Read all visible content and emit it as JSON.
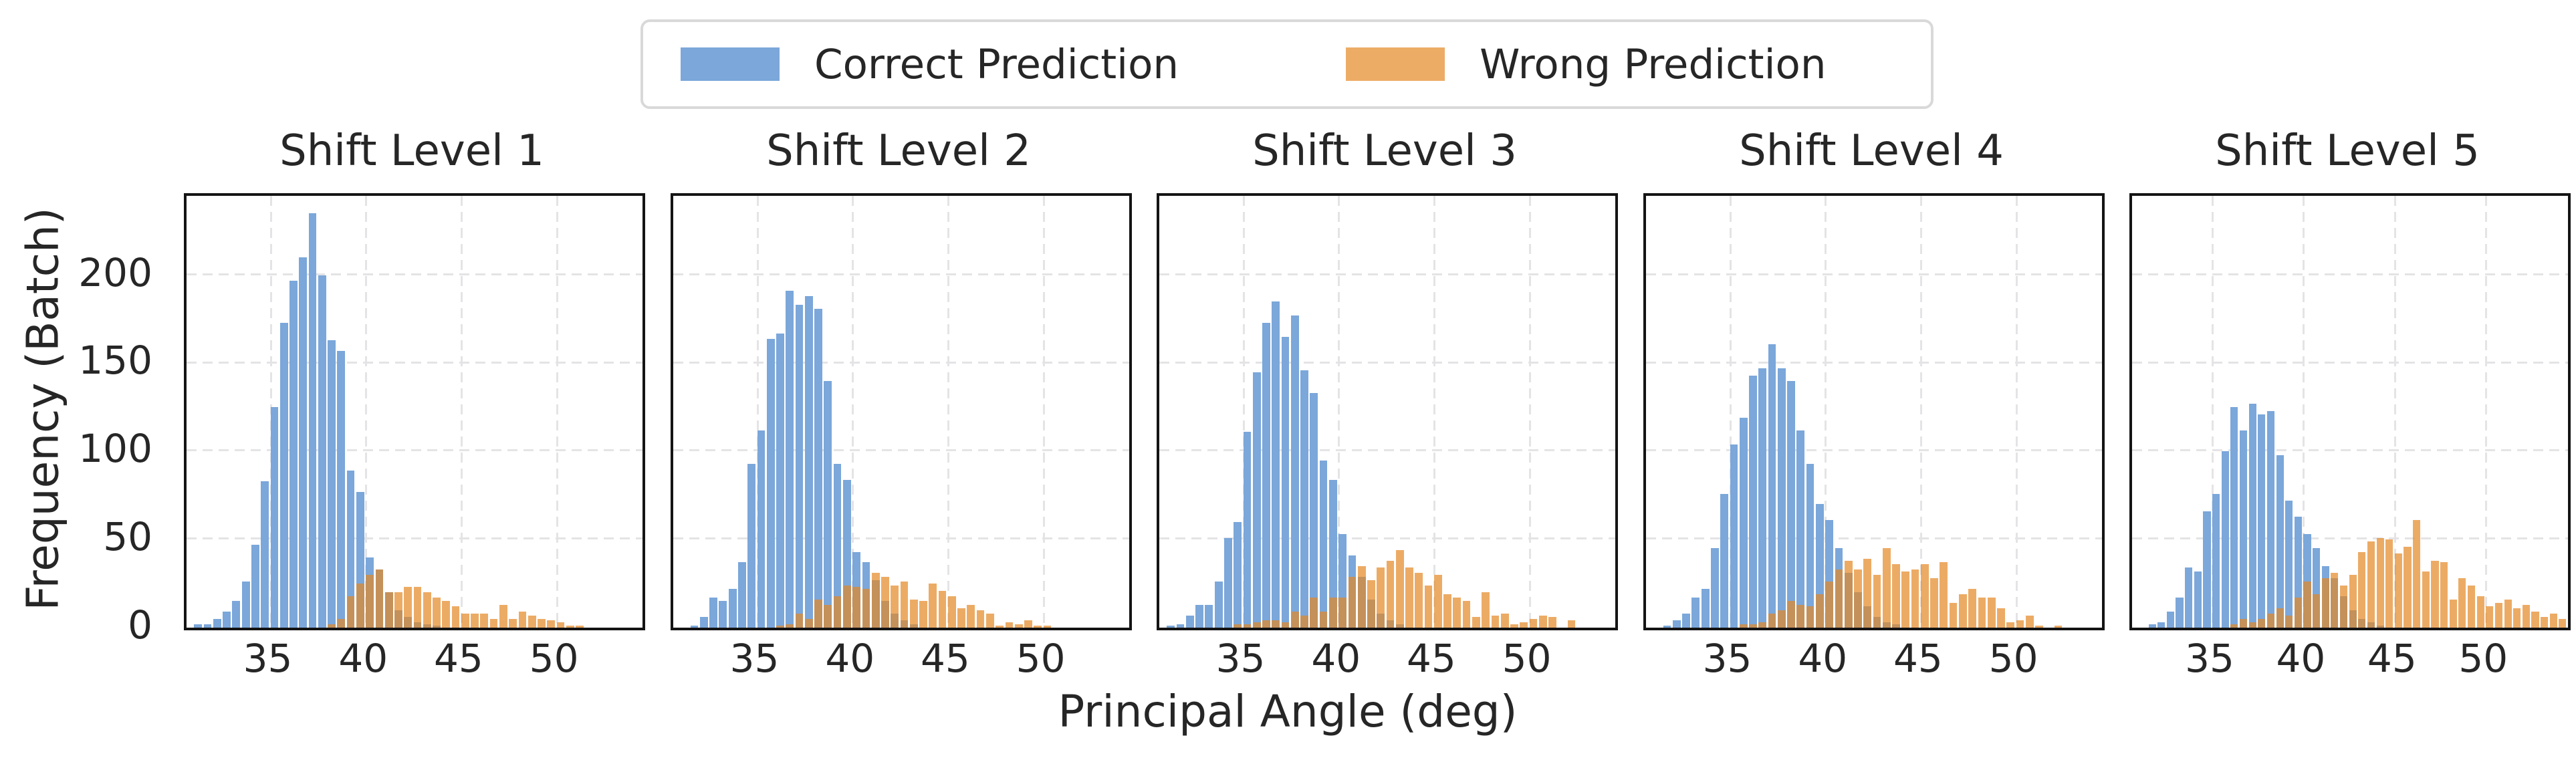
{
  "legend": {
    "items": [
      {
        "label": "Correct Prediction",
        "color": "#7BA7DA"
      },
      {
        "label": "Wrong Prediction",
        "color": "#ECAC66"
      }
    ]
  },
  "axes": {
    "xlabel": "Principal Angle (deg)",
    "ylabel": "Frequency (Batch)",
    "xtick_labels": [
      "35",
      "40",
      "45",
      "50"
    ],
    "ytick_labels": [
      "0",
      "50",
      "100",
      "150",
      "200"
    ]
  },
  "colors": {
    "correct_fill": "#7BA7DA",
    "wrong_fill": "#ECAC66",
    "overlap_fill": "#C5925B",
    "grid": "#e4e4e6",
    "spine": "#141414",
    "text": "#262626"
  },
  "chart_data": {
    "type": "bar",
    "subtype": "overlaid-histograms",
    "bin_width_deg": 0.5,
    "xlabel": "Principal Angle (deg)",
    "ylabel": "Frequency (Batch)",
    "xlim": [
      30.6,
      54.5
    ],
    "ylim": [
      0,
      245
    ],
    "xticks": [
      35,
      40,
      45,
      50
    ],
    "yticks": [
      0,
      50,
      100,
      150,
      200
    ],
    "grid": "dashed",
    "legend_position": "top-center",
    "legend": [
      "Correct Prediction",
      "Wrong Prediction"
    ],
    "subplots": [
      {
        "title": "Shift Level 1",
        "correct": {
          "start_deg": 31.0,
          "counts": [
            2,
            2,
            5,
            9,
            15,
            26,
            47,
            83,
            125,
            173,
            197,
            210,
            235,
            200,
            163,
            157,
            89,
            77,
            40,
            33,
            20,
            10,
            6,
            3,
            2,
            1
          ]
        },
        "wrong": {
          "start_deg": 38.0,
          "counts": [
            2,
            5,
            18,
            25,
            30,
            33,
            20,
            20,
            23,
            23,
            20,
            17,
            15,
            12,
            8,
            8,
            8,
            5,
            13,
            5,
            9,
            7,
            5,
            4,
            3,
            1,
            1
          ]
        }
      },
      {
        "title": "Shift Level 2",
        "correct": {
          "start_deg": 31.5,
          "counts": [
            1,
            6,
            17,
            15,
            22,
            37,
            93,
            112,
            164,
            167,
            191,
            183,
            188,
            181,
            140,
            93,
            84,
            43,
            37,
            27,
            15,
            8,
            4,
            2
          ]
        },
        "wrong": {
          "start_deg": 36.0,
          "counts": [
            1,
            2,
            8,
            5,
            16,
            13,
            18,
            24,
            23,
            22,
            31,
            29,
            24,
            26,
            16,
            15,
            25,
            21,
            18,
            11,
            13,
            10,
            8,
            1,
            3,
            2,
            4,
            1,
            1
          ]
        }
      },
      {
        "title": "Shift Level 3",
        "correct": {
          "start_deg": 31.0,
          "counts": [
            1,
            2,
            7,
            13,
            13,
            26,
            51,
            60,
            111,
            145,
            173,
            185,
            165,
            177,
            146,
            133,
            95,
            84,
            53,
            41,
            29,
            16,
            8,
            4,
            2
          ]
        },
        "wrong": {
          "start_deg": 34.5,
          "counts": [
            2,
            2,
            3,
            4,
            4,
            3,
            9,
            7,
            17,
            9,
            17,
            17,
            29,
            35,
            27,
            34,
            38,
            44,
            34,
            31,
            24,
            30,
            19,
            17,
            15,
            6,
            20,
            7,
            8,
            2,
            3,
            5,
            7,
            6,
            0,
            4
          ]
        }
      },
      {
        "title": "Shift Level 4",
        "correct": {
          "start_deg": 31.5,
          "counts": [
            1,
            4,
            8,
            17,
            22,
            45,
            76,
            104,
            119,
            143,
            147,
            161,
            147,
            140,
            112,
            93,
            70,
            61,
            45,
            31,
            20,
            12,
            6,
            3,
            2
          ]
        },
        "wrong": {
          "start_deg": 35.5,
          "counts": [
            2,
            2,
            3,
            8,
            10,
            15,
            13,
            12,
            19,
            26,
            33,
            38,
            33,
            39,
            30,
            45,
            36,
            32,
            33,
            36,
            28,
            37,
            14,
            19,
            22,
            17,
            17,
            11,
            3,
            4,
            7,
            1,
            0,
            1
          ]
        }
      },
      {
        "title": "Shift Level 5",
        "correct": {
          "start_deg": 31.5,
          "counts": [
            2,
            3,
            9,
            17,
            34,
            32,
            66,
            76,
            100,
            125,
            112,
            127,
            121,
            123,
            98,
            72,
            63,
            53,
            45,
            35,
            28,
            18,
            10,
            5,
            3,
            1
          ]
        },
        "wrong": {
          "start_deg": 36.0,
          "counts": [
            2,
            5,
            3,
            5,
            8,
            11,
            7,
            17,
            26,
            19,
            28,
            31,
            24,
            30,
            43,
            49,
            51,
            50,
            42,
            46,
            61,
            32,
            38,
            37,
            16,
            28,
            24,
            18,
            12,
            14,
            16,
            11,
            13,
            9,
            6,
            8,
            5
          ]
        }
      }
    ]
  }
}
